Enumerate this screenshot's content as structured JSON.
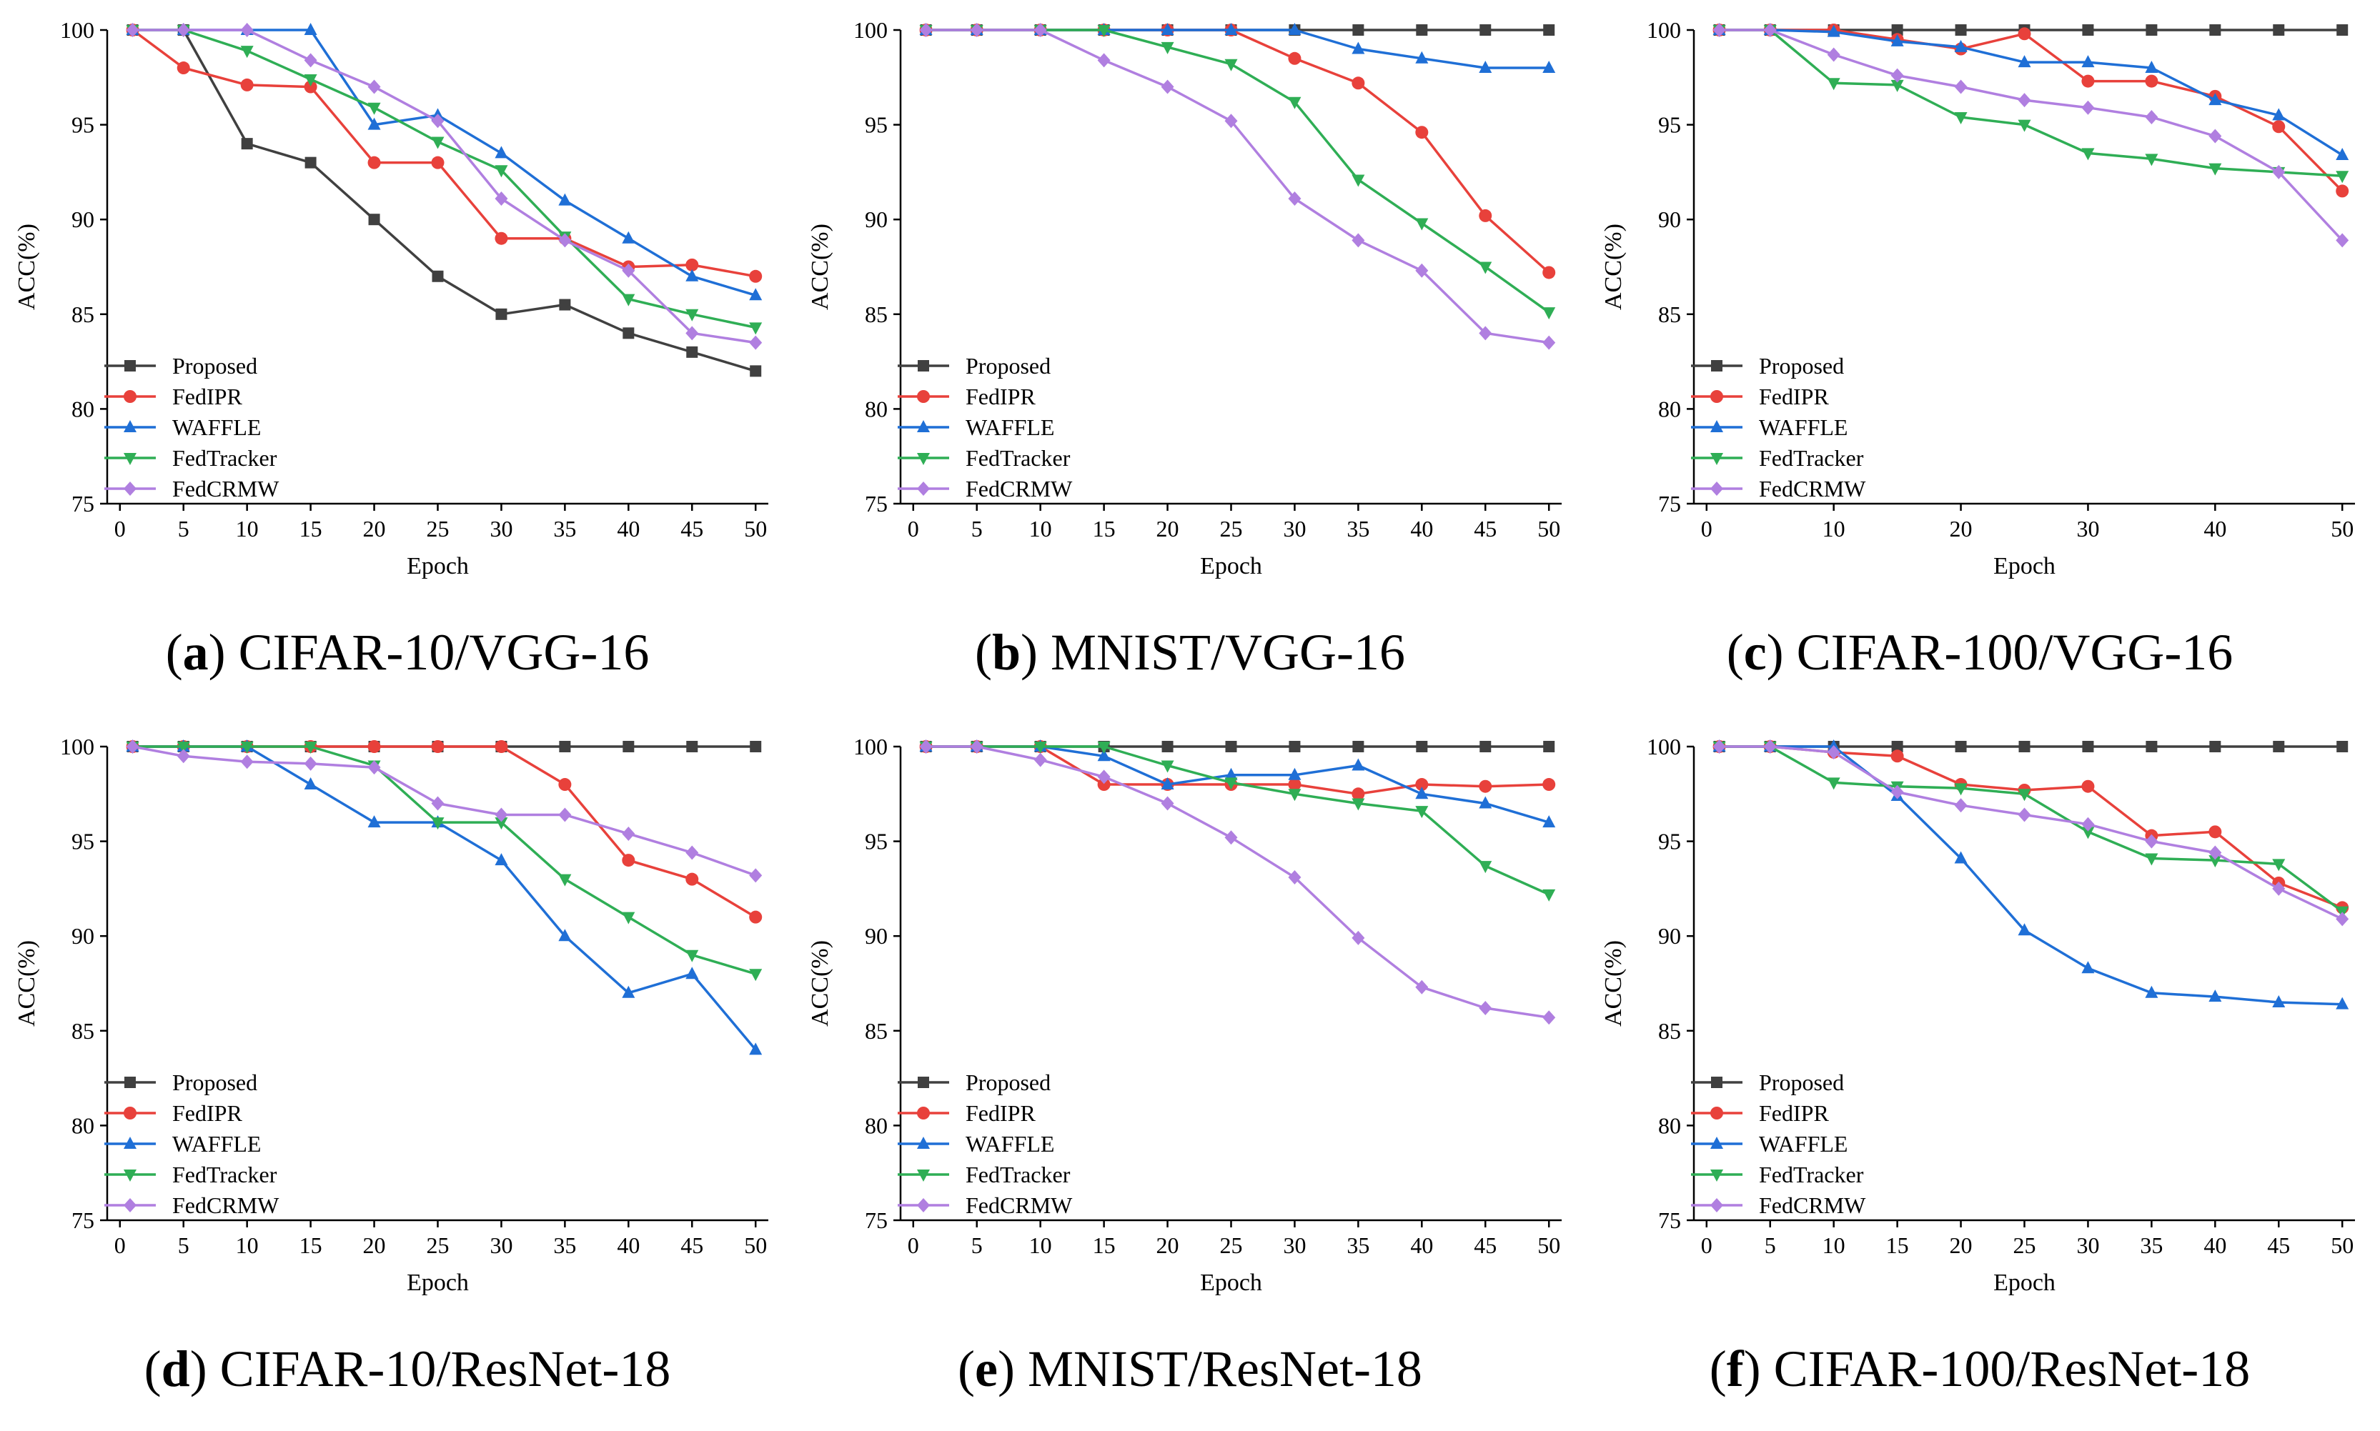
{
  "figure": {
    "series_style": [
      {
        "name": "Proposed",
        "color": "#404040",
        "marker": "square"
      },
      {
        "name": "FedIPR",
        "color": "#e8413b",
        "marker": "circle"
      },
      {
        "name": "WAFFLE",
        "color": "#1f6fd6",
        "marker": "triangle-up"
      },
      {
        "name": "FedTracker",
        "color": "#2fae55",
        "marker": "triangle-down"
      },
      {
        "name": "FedCRMW",
        "color": "#b07fe0",
        "marker": "diamond"
      }
    ]
  },
  "chart_data": [
    {
      "type": "line",
      "letter": "a",
      "caption_prefix": "(",
      "caption_suffix": ") CIFAR-10/VGG-16",
      "xlabel": "Epoch",
      "ylabel": "ACC(%)",
      "ylim": [
        75,
        100
      ],
      "xlim": [
        -1,
        51
      ],
      "xticks": [
        0,
        5,
        10,
        15,
        20,
        25,
        30,
        35,
        40,
        45,
        50
      ],
      "yticks": [
        75,
        80,
        85,
        90,
        95,
        100
      ],
      "x": [
        1,
        5,
        10,
        15,
        20,
        25,
        30,
        35,
        40,
        45,
        50
      ],
      "legend": [
        "Proposed",
        "FedIPR",
        "WAFFLE",
        "FedTracker",
        "FedCRMW"
      ],
      "series": [
        {
          "name": "Proposed",
          "values": [
            100,
            100,
            94,
            93,
            90,
            87,
            85,
            85.5,
            84,
            83,
            82
          ]
        },
        {
          "name": "FedIPR",
          "values": [
            100,
            98,
            97.1,
            97,
            93,
            93,
            89,
            89,
            87.5,
            87.6,
            87
          ]
        },
        {
          "name": "WAFFLE",
          "values": [
            100,
            100,
            100,
            100,
            95,
            95.5,
            93.5,
            91,
            89,
            87,
            86
          ]
        },
        {
          "name": "FedTracker",
          "values": [
            100,
            100,
            98.9,
            97.4,
            95.9,
            94.1,
            92.6,
            89.1,
            85.8,
            85,
            84.3
          ]
        },
        {
          "name": "FedCRMW",
          "values": [
            100,
            100,
            100,
            98.4,
            97,
            95.2,
            91.1,
            88.9,
            87.3,
            84,
            83.5
          ]
        }
      ]
    },
    {
      "type": "line",
      "letter": "b",
      "caption_prefix": "(",
      "caption_suffix": ") MNIST/VGG-16",
      "xlabel": "Epoch",
      "ylabel": "ACC(%)",
      "ylim": [
        75,
        100
      ],
      "xlim": [
        -1,
        51
      ],
      "xticks": [
        0,
        5,
        10,
        15,
        20,
        25,
        30,
        35,
        40,
        45,
        50
      ],
      "yticks": [
        75,
        80,
        85,
        90,
        95,
        100
      ],
      "x": [
        1,
        5,
        10,
        15,
        20,
        25,
        30,
        35,
        40,
        45,
        50
      ],
      "legend": [
        "Proposed",
        "FedIPR",
        "WAFFLE",
        "FedTracker",
        "FedCRMW"
      ],
      "series": [
        {
          "name": "Proposed",
          "values": [
            100,
            100,
            100,
            100,
            100,
            100,
            100,
            100,
            100,
            100,
            100
          ]
        },
        {
          "name": "FedIPR",
          "values": [
            100,
            100,
            100,
            100,
            100,
            100,
            98.5,
            97.2,
            94.6,
            90.2,
            87.2
          ]
        },
        {
          "name": "WAFFLE",
          "values": [
            100,
            100,
            100,
            100,
            100,
            100,
            100,
            99,
            98.5,
            98,
            98
          ]
        },
        {
          "name": "FedTracker",
          "values": [
            100,
            100,
            100,
            100,
            99.1,
            98.2,
            96.2,
            92.1,
            89.8,
            87.5,
            85.1
          ]
        },
        {
          "name": "FedCRMW",
          "values": [
            100,
            100,
            100,
            98.4,
            97,
            95.2,
            91.1,
            88.9,
            87.3,
            84,
            83.5
          ]
        }
      ]
    },
    {
      "type": "line",
      "letter": "c",
      "caption_prefix": "(",
      "caption_suffix": ") CIFAR-100/VGG-16",
      "xlabel": "Epoch",
      "ylabel": "ACC(%)",
      "ylim": [
        75,
        100
      ],
      "xlim": [
        -1,
        51
      ],
      "xticks": [
        0,
        10,
        20,
        30,
        40,
        50
      ],
      "yticks": [
        75,
        80,
        85,
        90,
        95,
        100
      ],
      "x": [
        1,
        5,
        10,
        15,
        20,
        25,
        30,
        35,
        40,
        45,
        50
      ],
      "legend": [
        "Proposed",
        "FedIPR",
        "WAFFLE",
        "FedTracker",
        "FedCRMW"
      ],
      "series": [
        {
          "name": "Proposed",
          "values": [
            100,
            100,
            100,
            100,
            100,
            100,
            100,
            100,
            100,
            100,
            100
          ]
        },
        {
          "name": "FedIPR",
          "values": [
            100,
            100,
            100,
            99.5,
            99,
            99.8,
            97.3,
            97.3,
            96.5,
            94.9,
            91.5
          ]
        },
        {
          "name": "WAFFLE",
          "values": [
            100,
            100,
            99.9,
            99.4,
            99.1,
            98.3,
            98.3,
            98,
            96.3,
            95.5,
            93.4
          ]
        },
        {
          "name": "FedTracker",
          "values": [
            100,
            100,
            97.2,
            97.1,
            95.4,
            95,
            93.5,
            93.2,
            92.7,
            92.5,
            92.3
          ]
        },
        {
          "name": "FedCRMW",
          "values": [
            100,
            100,
            98.7,
            97.6,
            97,
            96.3,
            95.9,
            95.4,
            94.4,
            92.5,
            88.9
          ]
        }
      ]
    },
    {
      "type": "line",
      "letter": "d",
      "caption_prefix": "(",
      "caption_suffix": ") CIFAR-10/ResNet-18",
      "xlabel": "Epoch",
      "ylabel": "ACC(%)",
      "ylim": [
        75,
        100
      ],
      "xlim": [
        -1,
        51
      ],
      "xticks": [
        0,
        5,
        10,
        15,
        20,
        25,
        30,
        35,
        40,
        45,
        50
      ],
      "yticks": [
        75,
        80,
        85,
        90,
        95,
        100
      ],
      "x": [
        1,
        5,
        10,
        15,
        20,
        25,
        30,
        35,
        40,
        45,
        50
      ],
      "legend": [
        "Proposed",
        "FedIPR",
        "WAFFLE",
        "FedTracker",
        "FedCRMW"
      ],
      "series": [
        {
          "name": "Proposed",
          "values": [
            100,
            100,
            100,
            100,
            100,
            100,
            100,
            100,
            100,
            100,
            100
          ]
        },
        {
          "name": "FedIPR",
          "values": [
            100,
            100,
            100,
            100,
            100,
            100,
            100,
            98,
            94,
            93,
            91
          ]
        },
        {
          "name": "WAFFLE",
          "values": [
            100,
            100,
            100,
            98,
            96,
            96,
            94,
            90,
            87,
            88,
            84
          ]
        },
        {
          "name": "FedTracker",
          "values": [
            100,
            100,
            100,
            100,
            99,
            96,
            96,
            93,
            91,
            89,
            88
          ]
        },
        {
          "name": "FedCRMW",
          "values": [
            100,
            99.5,
            99.2,
            99.1,
            98.9,
            97,
            96.4,
            96.4,
            95.4,
            94.4,
            93.2
          ]
        }
      ]
    },
    {
      "type": "line",
      "letter": "e",
      "caption_prefix": "(",
      "caption_suffix": ") MNIST/ResNet-18",
      "xlabel": "Epoch",
      "ylabel": "ACC(%)",
      "ylim": [
        75,
        100
      ],
      "xlim": [
        -1,
        51
      ],
      "xticks": [
        0,
        5,
        10,
        15,
        20,
        25,
        30,
        35,
        40,
        45,
        50
      ],
      "yticks": [
        75,
        80,
        85,
        90,
        95,
        100
      ],
      "x": [
        1,
        5,
        10,
        15,
        20,
        25,
        30,
        35,
        40,
        45,
        50
      ],
      "legend": [
        "Proposed",
        "FedIPR",
        "WAFFLE",
        "FedTracker",
        "FedCRMW"
      ],
      "series": [
        {
          "name": "Proposed",
          "values": [
            100,
            100,
            100,
            100,
            100,
            100,
            100,
            100,
            100,
            100,
            100
          ]
        },
        {
          "name": "FedIPR",
          "values": [
            100,
            100,
            100,
            98,
            98,
            98,
            98,
            97.5,
            98,
            97.9,
            98
          ]
        },
        {
          "name": "WAFFLE",
          "values": [
            100,
            100,
            100,
            99.5,
            98,
            98.5,
            98.5,
            99,
            97.5,
            97,
            96
          ]
        },
        {
          "name": "FedTracker",
          "values": [
            100,
            100,
            100,
            100,
            99,
            98.1,
            97.5,
            97,
            96.6,
            93.7,
            92.2
          ]
        },
        {
          "name": "FedCRMW",
          "values": [
            100,
            100,
            99.3,
            98.4,
            97,
            95.2,
            93.1,
            89.9,
            87.3,
            86.2,
            85.7
          ]
        }
      ]
    },
    {
      "type": "line",
      "letter": "f",
      "caption_prefix": "(",
      "caption_suffix": ") CIFAR-100/ResNet-18",
      "xlabel": "Epoch",
      "ylabel": "ACC(%)",
      "ylim": [
        75,
        100
      ],
      "xlim": [
        -1,
        51
      ],
      "xticks": [
        0,
        5,
        10,
        15,
        20,
        25,
        30,
        35,
        40,
        45,
        50
      ],
      "yticks": [
        75,
        80,
        85,
        90,
        95,
        100
      ],
      "x": [
        1,
        5,
        10,
        15,
        20,
        25,
        30,
        35,
        40,
        45,
        50
      ],
      "legend": [
        "Proposed",
        "FedIPR",
        "WAFFLE",
        "FedTracker",
        "FedCRMW"
      ],
      "series": [
        {
          "name": "Proposed",
          "values": [
            100,
            100,
            100,
            100,
            100,
            100,
            100,
            100,
            100,
            100,
            100
          ]
        },
        {
          "name": "FedIPR",
          "values": [
            100,
            100,
            99.7,
            99.5,
            98,
            97.7,
            97.9,
            95.3,
            95.5,
            92.8,
            91.5
          ]
        },
        {
          "name": "WAFFLE",
          "values": [
            100,
            100,
            100,
            97.4,
            94.1,
            90.3,
            88.3,
            87,
            86.8,
            86.5,
            86.4
          ]
        },
        {
          "name": "FedTracker",
          "values": [
            100,
            100,
            98.1,
            97.9,
            97.8,
            97.5,
            95.5,
            94.1,
            94,
            93.8,
            91.3
          ]
        },
        {
          "name": "FedCRMW",
          "values": [
            100,
            100,
            99.7,
            97.6,
            96.9,
            96.4,
            95.9,
            95,
            94.4,
            92.5,
            90.9
          ]
        }
      ]
    }
  ]
}
